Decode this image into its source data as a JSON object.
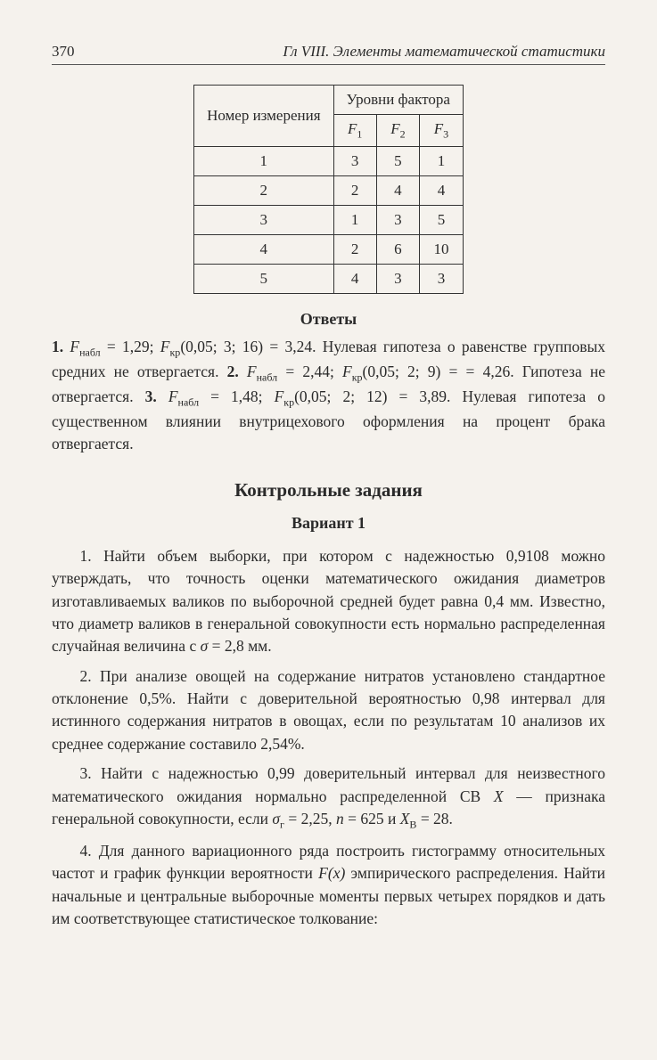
{
  "header": {
    "page_number": "370",
    "chapter": "Гл  VIII. Элементы математической статистики"
  },
  "table": {
    "col_header_left": "Номер измерения",
    "col_header_right": "Уровни фактора",
    "factors": [
      "F",
      "F",
      "F"
    ],
    "factor_subs": [
      "1",
      "2",
      "3"
    ],
    "rows": [
      {
        "n": "1",
        "v": [
          "3",
          "5",
          "1"
        ]
      },
      {
        "n": "2",
        "v": [
          "2",
          "4",
          "4"
        ]
      },
      {
        "n": "3",
        "v": [
          "1",
          "3",
          "5"
        ]
      },
      {
        "n": "4",
        "v": [
          "2",
          "6",
          "10"
        ]
      },
      {
        "n": "5",
        "v": [
          "4",
          "3",
          "3"
        ]
      }
    ]
  },
  "answers": {
    "heading": "Ответы",
    "text_1": "1.",
    "f_nabl_label": "F",
    "nabl_sub": "набл",
    "eq_1_29": " = 1,29;  ",
    "f_kr_label": "F",
    "kr_sub": "кр",
    "kr_args_1": "(0,05; 3; 16) = 3,24. Нулевая гипотеза о равенстве групповых средних не отвергается. ",
    "text_2": "2. ",
    "eq_2_44": " = 2,44;  ",
    "kr_args_2": "(0,05; 2; 9) = ",
    "line2_cont": "= 4,26. Гипотеза не отвергается. ",
    "text_3": "3. ",
    "eq_1_48": " = 1,48; ",
    "kr_args_3": "(0,05; 2; 12) = 3,89. ",
    "tail": "Нулевая гипотеза о существенном влиянии внутрицехового оформления на процент брака отвергается."
  },
  "section": {
    "heading": "Контрольные задания",
    "variant": "Вариант 1"
  },
  "tasks": {
    "t1_a": "1. Найти объем выборки, при котором с надежностью 0,9108 можно утверждать, что точность оценки математического ожидания диаметров изготавливаемых валиков по выборочной средней будет равна 0,4 мм. Известно, что диаметр валиков в генеральной совокупности есть нормально распределенная случайная величина с ",
    "sigma": "σ",
    "t1_b": " = 2,8 мм.",
    "t2": "2. При анализе овощей на содержание нитратов установлено стандартное отклонение 0,5%. Найти с доверительной вероятностью 0,98 интервал для истинного содержания нитратов в овощах, если по результатам 10 анализов их среднее содержание составило 2,54%.",
    "t3_a": "3. Найти с надежностью 0,99 доверительный интервал для неизвестного математического ожидания нормально распределенной СВ ",
    "X": "X",
    "t3_b": " — признака генеральной совокупности, если ",
    "sigma_g": "σ",
    "g_sub": "г",
    "t3_c": " = 2,25,  ",
    "n": "n",
    "t3_d": " = 625  и  ",
    "XB": "X",
    "B_sub": "B",
    "t3_e": " = 28.",
    "t4_a": "4. Для данного вариационного ряда построить гистограмму относительных частот и график функции вероятности ",
    "Fx": "F(x)",
    "t4_b": " эмпирического распределения. Найти начальные и центральные выборочные моменты первых четырех порядков и дать им соответствующее статистическое толкование:"
  }
}
